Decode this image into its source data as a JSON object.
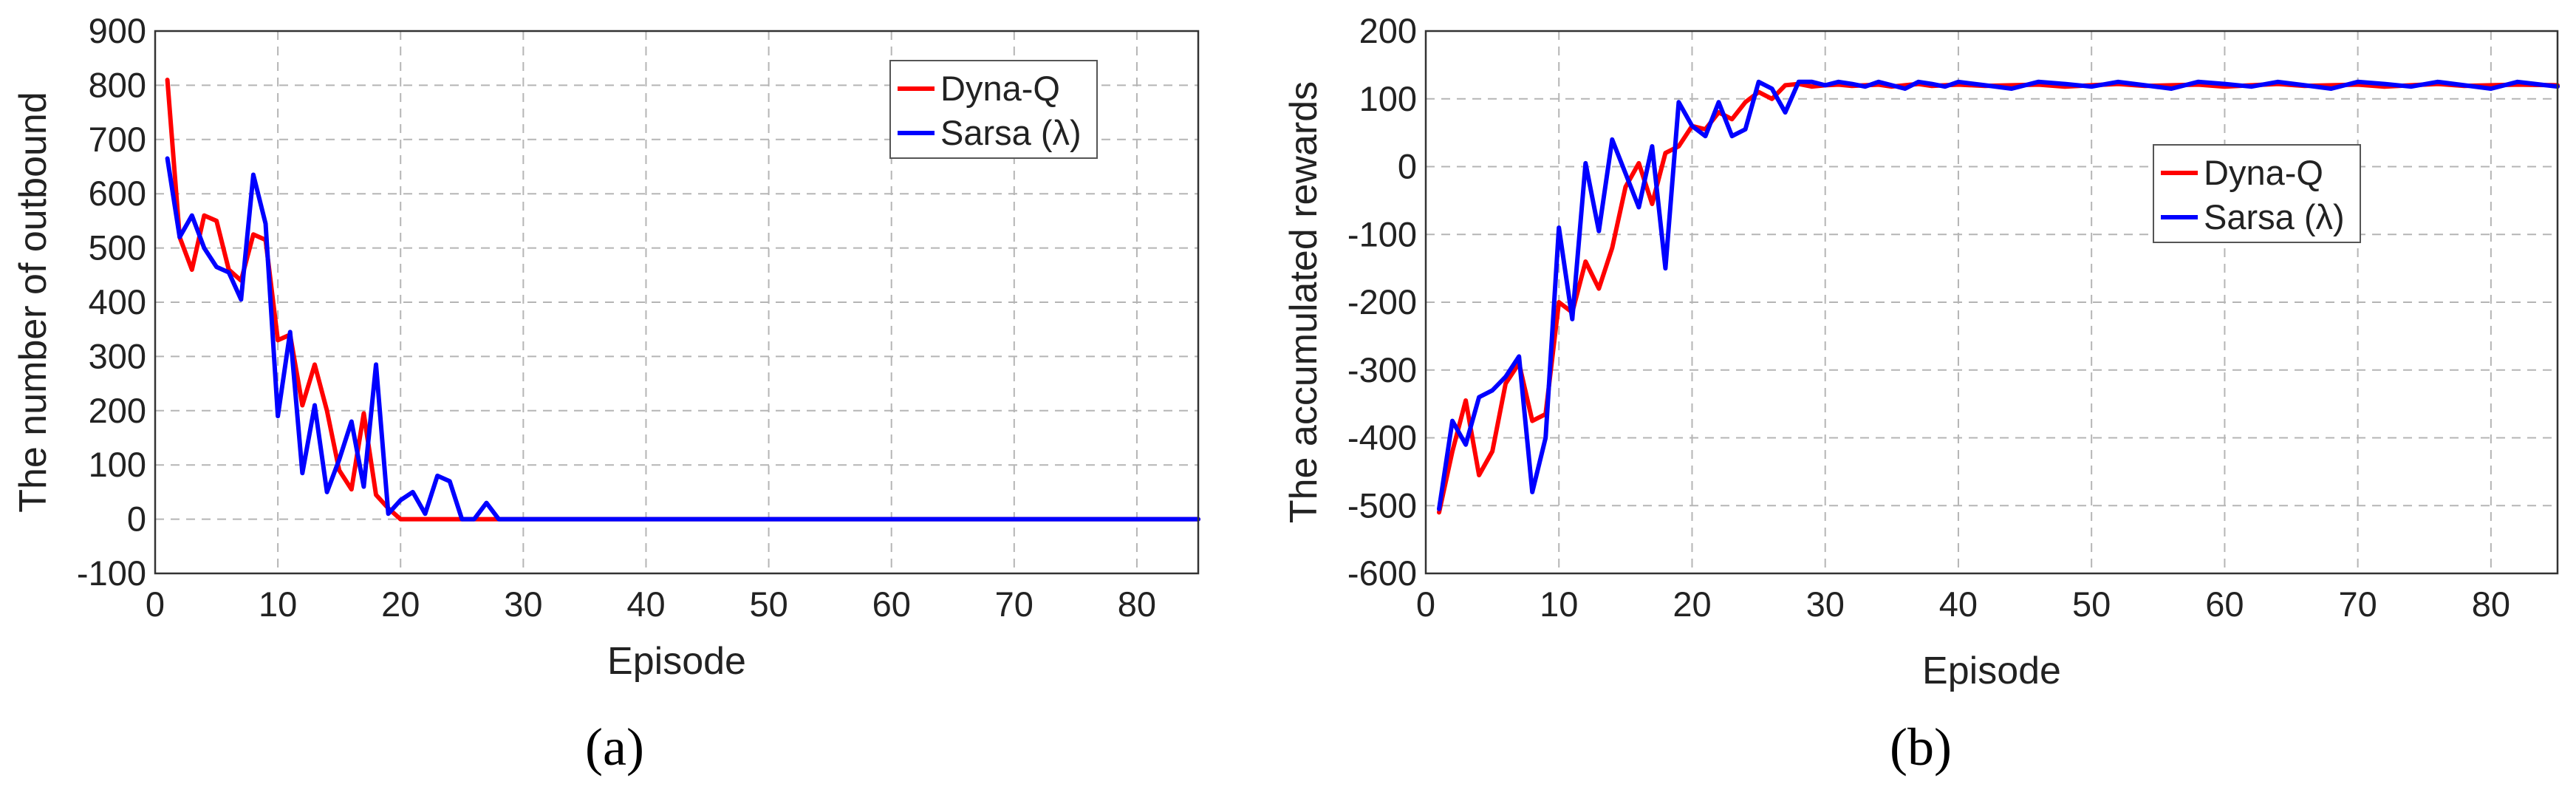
{
  "chart_data": [
    {
      "type": "line",
      "panel_label": "(a)",
      "xlabel": "Episode",
      "ylabel": "The number of outbound",
      "xlim": [
        0,
        85
      ],
      "ylim": [
        -100,
        900
      ],
      "xticks": [
        0,
        10,
        20,
        30,
        40,
        50,
        60,
        70,
        80
      ],
      "yticks": [
        -100,
        0,
        100,
        200,
        300,
        400,
        500,
        600,
        700,
        800,
        900
      ],
      "grid": true,
      "legend_position": "top-right",
      "series": [
        {
          "name": "Dyna-Q",
          "color": "#ff0000",
          "x": [
            1,
            2,
            3,
            4,
            5,
            6,
            7,
            8,
            9,
            10,
            11,
            12,
            13,
            14,
            15,
            16,
            17,
            18,
            19,
            20,
            21,
            22,
            23,
            24,
            25,
            26,
            27,
            28,
            29,
            30,
            40,
            50,
            60,
            70,
            80,
            85
          ],
          "y": [
            810,
            520,
            460,
            560,
            550,
            460,
            440,
            525,
            515,
            330,
            340,
            210,
            285,
            200,
            90,
            55,
            195,
            45,
            20,
            0,
            0,
            0,
            0,
            0,
            0,
            0,
            0,
            0,
            0,
            0,
            0,
            0,
            0,
            0,
            0,
            0
          ]
        },
        {
          "name": "Sarsa (λ)",
          "color": "#0000ff",
          "x": [
            1,
            2,
            3,
            4,
            5,
            6,
            7,
            8,
            9,
            10,
            11,
            12,
            13,
            14,
            15,
            16,
            17,
            18,
            19,
            20,
            21,
            22,
            23,
            24,
            25,
            26,
            27,
            28,
            29,
            30,
            40,
            50,
            60,
            70,
            80,
            85
          ],
          "y": [
            665,
            520,
            560,
            500,
            465,
            455,
            405,
            635,
            545,
            190,
            345,
            85,
            210,
            50,
            110,
            180,
            60,
            285,
            10,
            35,
            50,
            10,
            80,
            70,
            0,
            0,
            30,
            0,
            0,
            0,
            0,
            0,
            0,
            0,
            0,
            0
          ]
        }
      ]
    },
    {
      "type": "line",
      "panel_label": "(b)",
      "xlabel": "Episode",
      "ylabel": "The accumulated rewards",
      "xlim": [
        0,
        85
      ],
      "ylim": [
        -600,
        200
      ],
      "xticks": [
        0,
        10,
        20,
        30,
        40,
        50,
        60,
        70,
        80
      ],
      "yticks": [
        -600,
        -500,
        -400,
        -300,
        -200,
        -100,
        0,
        100,
        200
      ],
      "grid": true,
      "legend_position": "upper-right-center",
      "series": [
        {
          "name": "Dyna-Q",
          "color": "#ff0000",
          "x": [
            1,
            2,
            3,
            4,
            5,
            6,
            7,
            8,
            9,
            10,
            11,
            12,
            13,
            14,
            15,
            16,
            17,
            18,
            19,
            20,
            21,
            22,
            23,
            24,
            25,
            26,
            27,
            28,
            29,
            30,
            31,
            32,
            33,
            34,
            35,
            36,
            37,
            38,
            39,
            40,
            42,
            44,
            46,
            48,
            50,
            52,
            54,
            56,
            58,
            60,
            62,
            64,
            66,
            68,
            70,
            72,
            74,
            76,
            78,
            80,
            82,
            85
          ],
          "y": [
            -510,
            -420,
            -345,
            -455,
            -420,
            -320,
            -290,
            -375,
            -365,
            -200,
            -215,
            -140,
            -180,
            -120,
            -30,
            5,
            -55,
            20,
            30,
            60,
            55,
            80,
            70,
            95,
            110,
            100,
            120,
            122,
            118,
            120,
            121,
            119,
            120,
            121,
            118,
            120,
            122,
            119,
            120,
            121,
            119,
            120,
            121,
            118,
            120,
            122,
            119,
            120,
            121,
            118,
            120,
            122,
            119,
            120,
            121,
            118,
            120,
            122,
            119,
            120,
            121,
            120
          ]
        },
        {
          "name": "Sarsa (λ)",
          "color": "#0000ff",
          "x": [
            1,
            2,
            3,
            4,
            5,
            6,
            7,
            8,
            9,
            10,
            11,
            12,
            13,
            14,
            15,
            16,
            17,
            18,
            19,
            20,
            21,
            22,
            23,
            24,
            25,
            26,
            27,
            28,
            29,
            30,
            31,
            32,
            33,
            34,
            35,
            36,
            37,
            38,
            39,
            40,
            42,
            44,
            46,
            48,
            50,
            52,
            54,
            56,
            58,
            60,
            62,
            64,
            66,
            68,
            70,
            72,
            74,
            76,
            78,
            80,
            82,
            85
          ],
          "y": [
            -505,
            -375,
            -410,
            -340,
            -330,
            -310,
            -280,
            -480,
            -400,
            -90,
            -225,
            5,
            -95,
            40,
            -10,
            -60,
            30,
            -150,
            95,
            60,
            45,
            95,
            45,
            55,
            125,
            115,
            80,
            125,
            125,
            120,
            125,
            122,
            118,
            125,
            120,
            115,
            125,
            122,
            118,
            125,
            120,
            115,
            125,
            122,
            118,
            125,
            120,
            115,
            125,
            122,
            118,
            125,
            120,
            115,
            125,
            122,
            118,
            125,
            120,
            115,
            125,
            118
          ]
        }
      ]
    }
  ]
}
